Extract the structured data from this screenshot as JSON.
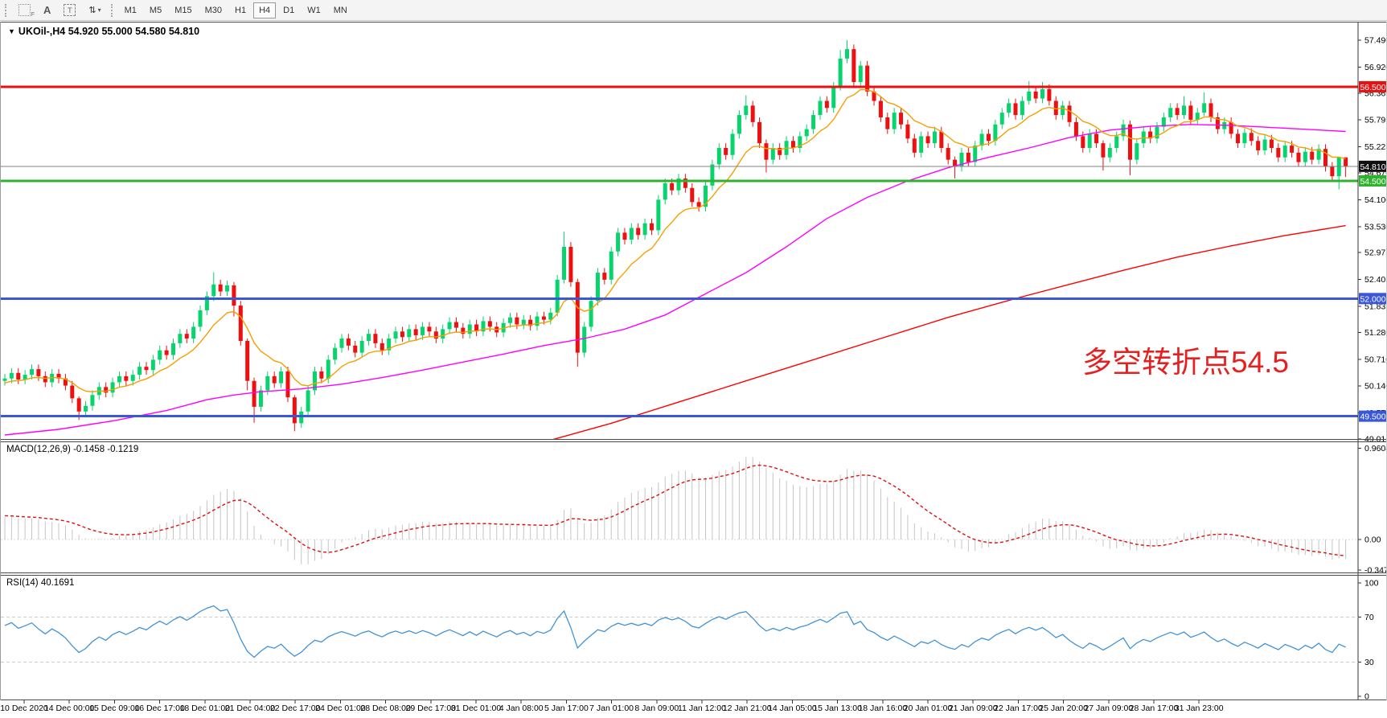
{
  "toolbar": {
    "tools": [
      {
        "name": "grid-f-icon",
        "glyph": "",
        "sub": "F"
      },
      {
        "name": "text-label-icon",
        "glyph": "A"
      },
      {
        "name": "text-box-icon",
        "glyph": "T"
      },
      {
        "name": "arrows-tool-icon",
        "glyph": "⇅",
        "caret": "▾"
      }
    ],
    "timeframes": [
      {
        "label": "M1"
      },
      {
        "label": "M5"
      },
      {
        "label": "M15"
      },
      {
        "label": "M30"
      },
      {
        "label": "H1"
      },
      {
        "label": "H4"
      },
      {
        "label": "D1"
      },
      {
        "label": "W1"
      },
      {
        "label": "MN"
      }
    ],
    "active_timeframe": "H4"
  },
  "chart_header": {
    "marker": "▼",
    "title": "UKOil-,H4  54.920 55.000 54.580 54.810",
    "symbol": "UKOil-",
    "period": "H4",
    "open": "54.920",
    "high": "55.000",
    "low": "54.580",
    "close": "54.810"
  },
  "indicator_labels": {
    "macd": "MACD(12,26,9) -0.1458 -0.1219",
    "rsi": "RSI(14) 40.1691"
  },
  "chart_data": {
    "type": "candlestick",
    "symbol": "UKOil-",
    "timeframe": "H4",
    "annotation": {
      "text": "多空转折点54.5",
      "color": "#e62020",
      "x": 1346,
      "y": 420
    },
    "colors": {
      "up": "#07d46c",
      "down": "#ee0f0f",
      "ma_fast": "#f5a000",
      "ma_mid": "#ff00ff",
      "ma_slow": "#ff0000",
      "macd_hist": "#c4c4c4",
      "macd_signal": "#dd1111",
      "rsi_line": "#4193d6",
      "rsi_guide": "#cccccc",
      "axis_text": "#000000",
      "border": "#6b6b6b"
    },
    "levels": [
      {
        "price": 56.5,
        "label": "56.500",
        "color": "#e81010",
        "width": 3
      },
      {
        "price": 54.81,
        "label": "54.810",
        "color": "#808080",
        "width": 1,
        "badge": "#101010"
      },
      {
        "price": 54.5,
        "label": "54.500",
        "color": "#2db32d",
        "width": 3
      },
      {
        "price": 52.0,
        "label": "52.000",
        "color": "#3a57d8",
        "width": 3
      },
      {
        "price": 49.5,
        "label": "49.500",
        "color": "#3a57d8",
        "width": 3
      }
    ],
    "y_ticks": [
      "57.490",
      "56.920",
      "56.365",
      "55.795",
      "55.225",
      "54.670",
      "54.100",
      "53.530",
      "52.975",
      "52.405",
      "51.835",
      "51.280",
      "50.710",
      "50.140",
      "49.570",
      "49.015"
    ],
    "x_labels": [
      "10 Dec 2020",
      "14 Dec 00:00",
      "15 Dec 09:00",
      "16 Dec 17:00",
      "18 Dec 01:00",
      "21 Dec 04:00",
      "22 Dec 17:00",
      "24 Dec 01:00",
      "28 Dec 08:00",
      "29 Dec 17:00",
      "31 Dec 01:00",
      "4 Jan 08:00",
      "5 Jan 17:00",
      "7 Jan 01:00",
      "8 Jan 09:00",
      "11 Jan 12:00",
      "12 Jan 21:00",
      "14 Jan 05:00",
      "15 Jan 13:00",
      "18 Jan 16:00",
      "20 Jan 01:00",
      "21 Jan 09:00",
      "22 Jan 17:00",
      "25 Jan 20:00",
      "27 Jan 09:00",
      "28 Jan 17:00",
      "31 Jan 23:00"
    ],
    "preroll": [
      48.6,
      48.75,
      48.65,
      48.9,
      48.8,
      49.0,
      49.15,
      49.05,
      49.25,
      49.1,
      49.3,
      49.45,
      49.35,
      49.2,
      49.4,
      49.55,
      49.45,
      49.65,
      49.5,
      49.7,
      49.85,
      49.75,
      49.6,
      49.8,
      49.95,
      49.85,
      50.05,
      49.95,
      50.1,
      50.0,
      50.15,
      50.05,
      50.2,
      50.1,
      50.25,
      50.15,
      50.3,
      50.2,
      50.35,
      50.25
    ],
    "closes": [
      50.3,
      50.42,
      50.28,
      50.38,
      50.5,
      50.35,
      50.22,
      50.4,
      50.3,
      50.15,
      49.88,
      49.6,
      49.72,
      49.95,
      50.12,
      50.0,
      50.22,
      50.35,
      50.25,
      50.38,
      50.55,
      50.48,
      50.7,
      50.9,
      50.8,
      51.05,
      51.25,
      51.15,
      51.4,
      51.75,
      52.05,
      52.3,
      52.15,
      52.28,
      51.85,
      51.1,
      50.25,
      49.7,
      50.05,
      50.35,
      50.2,
      50.45,
      49.9,
      49.35,
      49.6,
      50.05,
      50.45,
      50.3,
      50.7,
      50.95,
      51.15,
      51.0,
      50.85,
      51.1,
      51.25,
      51.05,
      50.9,
      51.15,
      51.3,
      51.18,
      51.35,
      51.22,
      51.4,
      51.3,
      51.15,
      51.35,
      51.5,
      51.38,
      51.25,
      51.45,
      51.3,
      51.52,
      51.4,
      51.28,
      51.48,
      51.6,
      51.45,
      51.55,
      51.42,
      51.62,
      51.55,
      51.7,
      52.4,
      53.1,
      52.35,
      50.85,
      51.4,
      51.95,
      52.55,
      52.4,
      53.0,
      53.4,
      53.25,
      53.5,
      53.35,
      53.6,
      53.45,
      54.1,
      54.45,
      54.3,
      54.55,
      54.35,
      54.05,
      53.95,
      54.4,
      54.85,
      55.2,
      55.05,
      55.5,
      55.9,
      56.1,
      55.75,
      55.3,
      54.95,
      55.2,
      55.05,
      55.35,
      55.2,
      55.45,
      55.6,
      55.9,
      56.2,
      56.05,
      56.5,
      57.1,
      57.3,
      56.6,
      56.95,
      56.4,
      56.2,
      55.85,
      55.6,
      55.95,
      55.7,
      55.4,
      55.1,
      55.45,
      55.3,
      55.55,
      55.2,
      54.95,
      54.8,
      55.1,
      54.9,
      55.25,
      55.5,
      55.35,
      55.7,
      55.95,
      56.15,
      55.9,
      56.2,
      56.4,
      56.25,
      56.45,
      56.2,
      55.9,
      56.1,
      55.75,
      55.45,
      55.2,
      55.5,
      55.3,
      55.0,
      55.2,
      55.45,
      55.7,
      54.95,
      55.3,
      55.55,
      55.4,
      55.65,
      55.85,
      56.05,
      55.9,
      56.1,
      55.8,
      55.95,
      56.15,
      55.85,
      55.6,
      55.75,
      55.5,
      55.3,
      55.52,
      55.35,
      55.15,
      55.38,
      55.2,
      55.0,
      55.25,
      55.1,
      54.9,
      55.12,
      54.95,
      55.18,
      54.8,
      54.6,
      55.0,
      54.81
    ],
    "default_wick": 0.1,
    "wick_overrides": {
      "11": [
        49.92,
        49.42
      ],
      "31": [
        52.56,
        51.95
      ],
      "34": [
        52.35,
        51.62
      ],
      "36": [
        51.15,
        50.05
      ],
      "37": [
        50.32,
        49.36
      ],
      "43": [
        49.95,
        49.18
      ],
      "82": [
        52.5,
        51.62
      ],
      "83": [
        53.42,
        52.32
      ],
      "85": [
        52.42,
        50.55
      ],
      "110": [
        56.32,
        55.8
      ],
      "113": [
        55.38,
        54.68
      ],
      "124": [
        57.28,
        56.42
      ],
      "125": [
        57.49,
        57.0
      ],
      "126": [
        57.4,
        56.5
      ],
      "141": [
        55.02,
        54.55
      ],
      "152": [
        56.62,
        56.12
      ],
      "154": [
        56.6,
        56.15
      ],
      "163": [
        55.36,
        54.72
      ],
      "167": [
        55.78,
        54.62
      ],
      "175": [
        56.3,
        55.82
      ],
      "178": [
        56.38,
        55.88
      ],
      "198": [
        55.02,
        54.32
      ],
      "199": [
        55.0,
        54.58
      ]
    },
    "ma_fast_period": 10,
    "ma_mid_points": [
      [
        0,
        49.1
      ],
      [
        8,
        49.22
      ],
      [
        16,
        49.4
      ],
      [
        24,
        49.62
      ],
      [
        30,
        49.85
      ],
      [
        34,
        49.95
      ],
      [
        38,
        50.02
      ],
      [
        44,
        50.08
      ],
      [
        50,
        50.18
      ],
      [
        56,
        50.32
      ],
      [
        62,
        50.48
      ],
      [
        68,
        50.65
      ],
      [
        74,
        50.82
      ],
      [
        80,
        51.0
      ],
      [
        86,
        51.15
      ],
      [
        92,
        51.35
      ],
      [
        98,
        51.65
      ],
      [
        104,
        52.1
      ],
      [
        110,
        52.55
      ],
      [
        116,
        53.1
      ],
      [
        122,
        53.7
      ],
      [
        128,
        54.15
      ],
      [
        134,
        54.5
      ],
      [
        140,
        54.78
      ],
      [
        146,
        55.0
      ],
      [
        152,
        55.2
      ],
      [
        158,
        55.42
      ],
      [
        164,
        55.58
      ],
      [
        170,
        55.66
      ],
      [
        176,
        55.7
      ],
      [
        182,
        55.68
      ],
      [
        190,
        55.62
      ],
      [
        199,
        55.55
      ]
    ],
    "ma_slow_points": [
      [
        80,
        48.95
      ],
      [
        90,
        49.35
      ],
      [
        100,
        49.8
      ],
      [
        110,
        50.25
      ],
      [
        120,
        50.7
      ],
      [
        130,
        51.15
      ],
      [
        140,
        51.6
      ],
      [
        150,
        52.0
      ],
      [
        158,
        52.3
      ],
      [
        166,
        52.6
      ],
      [
        174,
        52.88
      ],
      [
        182,
        53.12
      ],
      [
        190,
        53.34
      ],
      [
        199,
        53.55
      ]
    ],
    "macd": {
      "fast": 12,
      "slow": 26,
      "signal": 9,
      "value_main": "-0.1458",
      "value_signal": "-0.1219",
      "y_ticks": [
        "0.9604",
        "0.00",
        "-0.3473"
      ]
    },
    "rsi": {
      "period": 14,
      "value": "40.1691",
      "guides": [
        70,
        30
      ],
      "y_ticks": [
        "100",
        "70",
        "30",
        "0"
      ]
    }
  }
}
